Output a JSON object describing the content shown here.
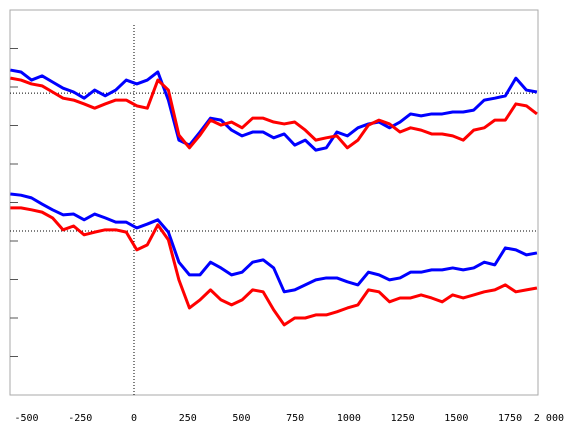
{
  "chart_data": {
    "type": "line",
    "x": [
      -575,
      -526,
      -477,
      -428,
      -379,
      -330,
      -281,
      -232,
      -183,
      -134,
      -85,
      -36,
      13,
      62,
      111,
      160,
      209,
      258,
      307,
      356,
      405,
      454,
      503,
      552,
      601,
      650,
      699,
      748,
      797,
      846,
      895,
      944,
      993,
      1042,
      1091,
      1140,
      1189,
      1238,
      1287,
      1336,
      1385,
      1434,
      1483,
      1532,
      1581,
      1630,
      1679,
      1728,
      1777,
      1826,
      1875
    ],
    "series": [
      {
        "color": "#0000ff",
        "values": [
          84.4,
          83.9,
          81.8,
          82.9,
          81.3,
          79.7,
          78.7,
          77.1,
          79.2,
          77.7,
          79.2,
          81.8,
          80.8,
          81.8,
          83.9,
          76.6,
          66.2,
          64.9,
          68.3,
          71.9,
          71.4,
          68.8,
          67.3,
          68.3,
          68.3,
          66.8,
          67.8,
          64.9,
          66.2,
          63.6,
          64.2,
          68.3,
          67.3,
          69.4,
          70.4,
          70.9,
          69.4,
          70.9,
          73.0,
          72.5,
          73.0,
          73.0,
          73.5,
          73.5,
          74.0,
          76.6,
          77.1,
          77.7,
          82.3,
          79.2,
          78.7
        ]
      },
      {
        "color": "#ff0000",
        "values": [
          82.3,
          81.8,
          80.8,
          80.3,
          78.7,
          77.1,
          76.6,
          75.6,
          74.5,
          75.6,
          76.6,
          76.6,
          75.1,
          74.5,
          81.8,
          79.2,
          67.5,
          64.2,
          67.5,
          71.4,
          70.1,
          70.9,
          69.4,
          71.9,
          71.9,
          70.9,
          70.4,
          70.9,
          68.8,
          66.2,
          66.8,
          67.3,
          64.2,
          66.2,
          70.1,
          71.4,
          70.4,
          68.3,
          69.4,
          68.8,
          67.8,
          67.8,
          67.3,
          66.2,
          68.8,
          69.4,
          71.4,
          71.4,
          75.6,
          75.1,
          73.0
        ]
      },
      {
        "color": "#0000ff",
        "values": [
          52.2,
          51.9,
          51.2,
          49.6,
          48.1,
          46.8,
          47.0,
          45.5,
          47.0,
          46.0,
          44.9,
          44.9,
          43.4,
          44.4,
          45.5,
          42.3,
          34.5,
          31.2,
          31.2,
          34.5,
          33.0,
          31.2,
          31.9,
          34.5,
          35.1,
          33.0,
          26.8,
          27.3,
          28.6,
          29.9,
          30.4,
          30.4,
          29.4,
          28.6,
          31.9,
          31.2,
          29.9,
          30.4,
          31.9,
          31.9,
          32.5,
          32.5,
          33.0,
          32.5,
          33.0,
          34.5,
          33.8,
          38.2,
          37.7,
          36.4,
          36.9
        ]
      },
      {
        "color": "#ff0000",
        "values": [
          48.6,
          48.6,
          48.1,
          47.5,
          46.0,
          42.9,
          43.9,
          41.6,
          42.3,
          42.9,
          42.9,
          42.3,
          37.7,
          39.0,
          44.2,
          40.3,
          29.9,
          22.6,
          24.7,
          27.3,
          24.7,
          23.4,
          24.7,
          27.3,
          26.8,
          22.1,
          18.2,
          20.0,
          20.0,
          20.8,
          20.8,
          21.6,
          22.6,
          23.4,
          27.3,
          26.8,
          24.2,
          25.2,
          25.2,
          26.0,
          25.2,
          24.2,
          26.0,
          25.2,
          26.0,
          26.8,
          27.3,
          28.6,
          26.8,
          27.3,
          27.8
        ]
      }
    ],
    "xlim": [
      -577,
      1880
    ],
    "xticks": [
      -500,
      -250,
      0,
      250,
      500,
      750,
      1000,
      1250,
      1500,
      1750,
      {
        "value": 2000,
        "label": "2 000"
      }
    ],
    "ylim": [
      0,
      100
    ],
    "yticks": [
      10,
      20,
      30,
      40,
      50,
      60,
      70,
      80,
      90
    ],
    "reference_x": [
      0
    ],
    "reference_y": [
      78.4,
      42.6
    ]
  }
}
